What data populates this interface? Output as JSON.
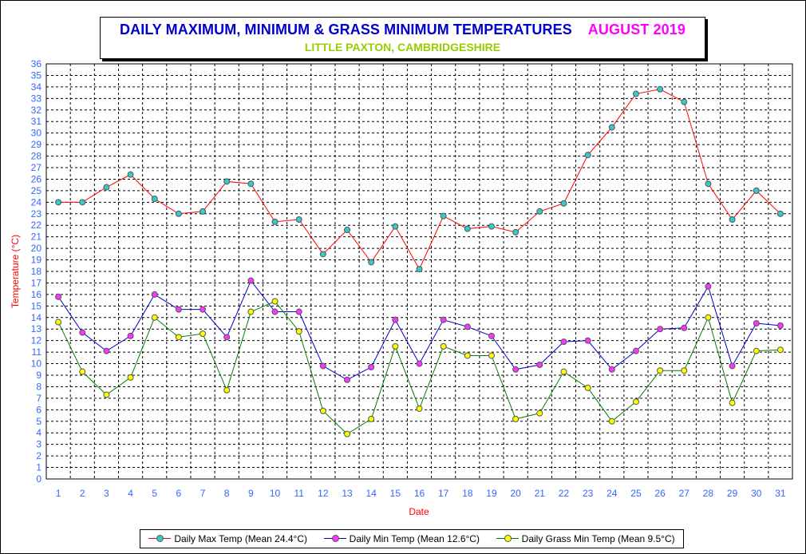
{
  "header": {
    "title": "DAILY MAXIMUM, MINIMUM & GRASS MINIMUM TEMPERATURES",
    "month": "AUGUST 2019",
    "subtitle": "LITTLE PAXTON, CAMBRIDGESHIRE"
  },
  "colors": {
    "title": "#0000cc",
    "month": "#ff00ff",
    "subtitle": "#99cc00",
    "axis_label": "#ff0000",
    "tick_label": "#3366ff",
    "max_line": "#ff0000",
    "max_marker": "#33cccc",
    "min_line": "#0000cc",
    "min_marker": "#ff33ff",
    "grass_line": "#008000",
    "grass_marker": "#ffff00"
  },
  "chart_data": {
    "type": "line",
    "xlabel": "Date",
    "ylabel": "Temperature (°C)",
    "ylim": [
      0,
      36
    ],
    "xlim": [
      0.5,
      31.5
    ],
    "grid": true,
    "legend_position": "bottom",
    "x": [
      1,
      2,
      3,
      4,
      5,
      6,
      7,
      8,
      9,
      10,
      11,
      12,
      13,
      14,
      15,
      16,
      17,
      18,
      19,
      20,
      21,
      22,
      23,
      24,
      25,
      26,
      27,
      28,
      29,
      30,
      31
    ],
    "y_ticks": [
      0,
      1,
      2,
      3,
      4,
      5,
      6,
      7,
      8,
      9,
      10,
      11,
      12,
      13,
      14,
      15,
      16,
      17,
      18,
      19,
      20,
      21,
      22,
      23,
      24,
      25,
      26,
      27,
      28,
      29,
      30,
      31,
      32,
      33,
      34,
      35,
      36
    ],
    "series": [
      {
        "name": "Daily Max Temp (Mean 24.4°C)",
        "values": [
          24.0,
          24.0,
          25.3,
          26.4,
          24.3,
          23.0,
          23.2,
          25.8,
          25.6,
          22.3,
          22.5,
          19.5,
          21.6,
          18.8,
          21.9,
          18.2,
          22.8,
          21.7,
          21.9,
          21.4,
          23.2,
          23.9,
          28.1,
          30.5,
          33.4,
          33.8,
          32.7,
          25.6,
          22.5,
          25.0,
          23.0
        ]
      },
      {
        "name": "Daily Min Temp (Mean 12.6°C)",
        "values": [
          15.8,
          12.7,
          11.1,
          12.4,
          16.0,
          14.7,
          14.7,
          12.3,
          17.2,
          14.5,
          14.5,
          9.8,
          8.6,
          9.7,
          13.8,
          10.0,
          13.8,
          13.2,
          12.4,
          9.5,
          9.9,
          11.9,
          12.0,
          9.5,
          11.1,
          13.0,
          13.1,
          16.7,
          9.8,
          13.5,
          13.3
        ]
      },
      {
        "name": "Daily Grass Min Temp (Mean 9.5°C)",
        "values": [
          13.6,
          9.3,
          7.3,
          8.8,
          14.0,
          12.3,
          12.6,
          7.7,
          14.5,
          15.4,
          12.8,
          5.9,
          3.9,
          5.2,
          11.5,
          6.1,
          11.5,
          10.7,
          10.7,
          5.2,
          5.7,
          9.3,
          7.9,
          5.0,
          6.7,
          9.4,
          9.4,
          14.0,
          6.6,
          11.1,
          11.2
        ]
      }
    ]
  }
}
